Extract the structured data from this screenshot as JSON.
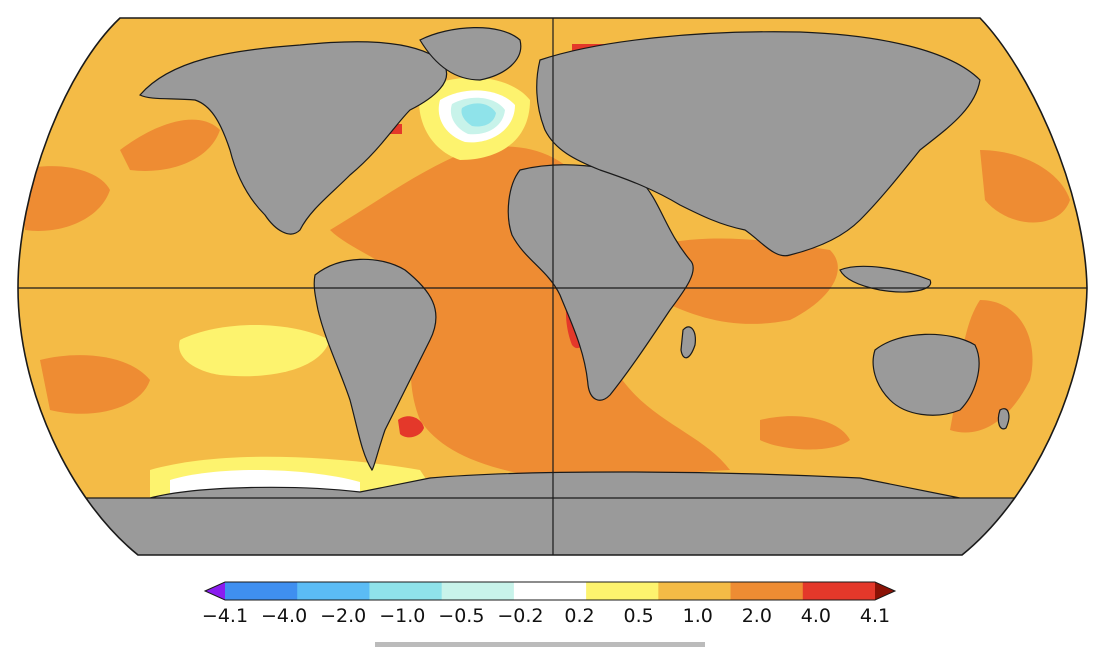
{
  "map": {
    "projection": "Robinson",
    "colors": {
      "land": "#9a9a9a",
      "coast": "#1a1a1a",
      "deep_red": "#e4382a",
      "orange": "#ee8c33",
      "light_orange": "#f4bb46",
      "yellow": "#fdf36e",
      "white": "#ffffff",
      "cyan_light": "#c8f3ea",
      "cyan": "#8fe3ea"
    }
  },
  "colorbar": {
    "extend": "both",
    "colors": [
      "#8a1cf0",
      "#3f8ff0",
      "#5bbcf5",
      "#8fe3ea",
      "#c8f3ea",
      "#ffffff",
      "#fdf36e",
      "#f4bb46",
      "#ee8c33",
      "#e4382a",
      "#8b1206"
    ],
    "ticks": [
      "−4.1",
      "−4.0",
      "−2.0",
      "−1.0",
      "−0.5",
      "−0.2",
      "0.2",
      "0.5",
      "1.0",
      "2.0",
      "4.0",
      "4.1"
    ]
  }
}
